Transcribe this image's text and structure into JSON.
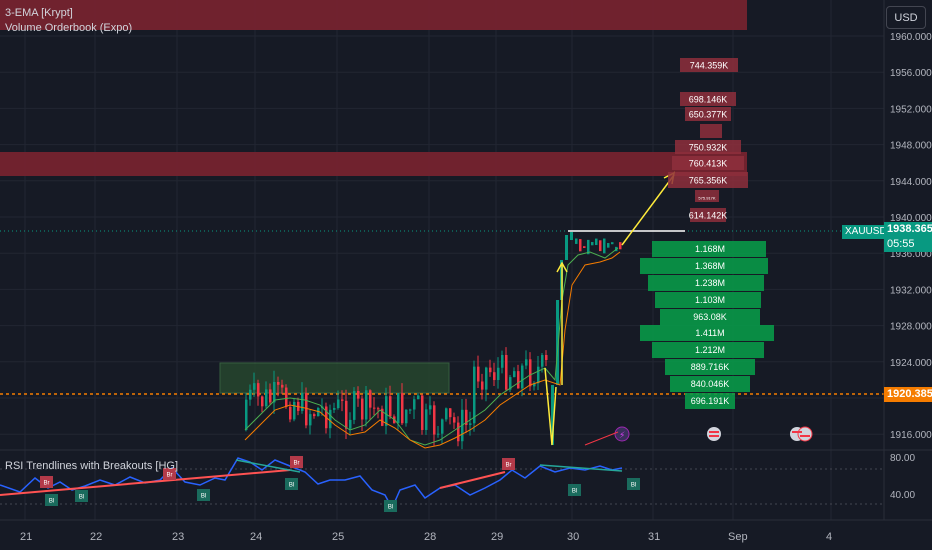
{
  "indicators": {
    "ema": "3-EMA [Krypt]",
    "vob": "Volume Orderbook (Expo)",
    "rsi": "RSI Trendlines with Breakouts [HG]"
  },
  "currency_button": "USD",
  "symbol": "XAUUSD",
  "last_price": "1938.365",
  "countdown": "05:55",
  "level_price": "1920.385",
  "price_axis": [
    "1960.000",
    "1956.000",
    "1952.000",
    "1948.000",
    "1944.000",
    "1940.000",
    "1936.000",
    "1932.000",
    "1928.000",
    "1924.000",
    "1920.000",
    "1916.000"
  ],
  "rsi_axis": [
    "80.00",
    "40.00"
  ],
  "time_axis": [
    "21",
    "22",
    "23",
    "24",
    "25",
    "28",
    "29",
    "30",
    "31",
    "Sep",
    "4"
  ],
  "orderbook_asks": [
    "744.359K",
    "698.146K",
    "650.377K",
    "",
    "750.932K",
    "760.413K",
    "765.356K",
    "575.917K",
    "614.142K"
  ],
  "orderbook_bids": [
    "1.168M",
    "1.368M",
    "1.238M",
    "1.103M",
    "963.08K",
    "1.411M",
    "1.212M",
    "889.716K",
    "840.046K",
    "696.191K"
  ],
  "breakout_labels": [
    "Br",
    "Bl"
  ],
  "colors": {
    "bg": "#161a25",
    "up": "#089981",
    "down": "#f23645",
    "rsi": "#2962ff",
    "level": "#f57c00",
    "arrow": "#ffeb3b"
  }
}
